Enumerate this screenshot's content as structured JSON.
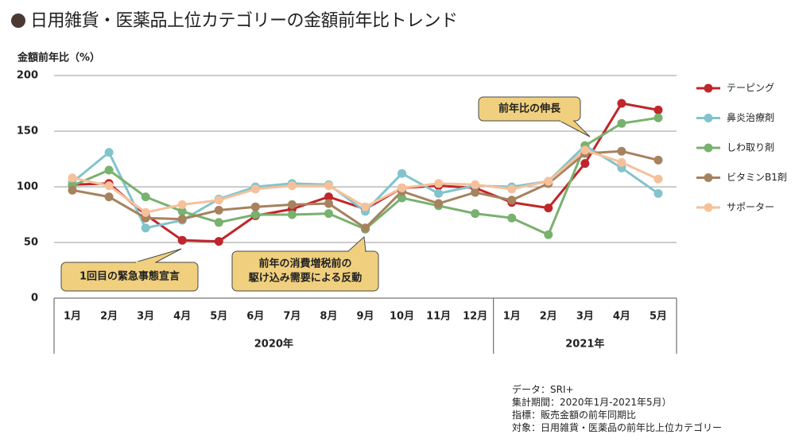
{
  "title": "日用雑貨・医薬品上位カテゴリーの金額前年比トレンド",
  "icons": {
    "title_bullet": "circle-bullet-icon"
  },
  "chart_data": {
    "type": "line",
    "title": "日用雑貨・医薬品上位カテゴリーの金額前年比トレンド",
    "ylabel": "金額前年比（%）",
    "xlabel": "",
    "ylim": [
      0,
      200
    ],
    "yticks": [
      0,
      50,
      100,
      150,
      200
    ],
    "grid": true,
    "legend": "right",
    "categories": [
      "1月",
      "2月",
      "3月",
      "4月",
      "5月",
      "6月",
      "7月",
      "8月",
      "9月",
      "10月",
      "11月",
      "12月",
      "1月",
      "2月",
      "3月",
      "4月",
      "5月"
    ],
    "year_groups": [
      {
        "label": "2020年",
        "months": 12
      },
      {
        "label": "2021年",
        "months": 5
      }
    ],
    "series": [
      {
        "name": "テーピング",
        "color": "#c0262a",
        "values": [
          102,
          103,
          75,
          52,
          51,
          74,
          80,
          91,
          80,
          99,
          101,
          99,
          86,
          81,
          121,
          175,
          169
        ]
      },
      {
        "name": "鼻炎治療剤",
        "color": "#82c4cc",
        "values": [
          104,
          131,
          63,
          70,
          89,
          100,
          103,
          102,
          78,
          112,
          94,
          101,
          100,
          105,
          137,
          117,
          94
        ]
      },
      {
        "name": "しわ取り剤",
        "color": "#79b16f",
        "values": [
          101,
          115,
          91,
          78,
          68,
          75,
          75,
          76,
          62,
          90,
          83,
          76,
          72,
          57,
          137,
          157,
          162
        ]
      },
      {
        "name": "ビタミンB1剤",
        "color": "#a6825e",
        "values": [
          97,
          91,
          72,
          71,
          79,
          82,
          84,
          85,
          63,
          96,
          85,
          95,
          88,
          103,
          130,
          132,
          124
        ]
      },
      {
        "name": "サポーター",
        "color": "#f6c19a",
        "values": [
          108,
          101,
          77,
          84,
          88,
          98,
          101,
          101,
          82,
          99,
          103,
          102,
          98,
          105,
          133,
          122,
          107
        ]
      }
    ],
    "annotations": [
      {
        "lines": [
          "前年比の伸長"
        ],
        "target_index": 14
      },
      {
        "lines": [
          "1回目の緊急事態宣言"
        ],
        "target_index": 3
      },
      {
        "lines": [
          "前年の消費増税前の",
          "駆け込み需要による反動"
        ],
        "target_index": 8
      }
    ]
  },
  "source": {
    "lines": [
      "データ：SRI+",
      "集計期間：2020年1月-2021年5月）",
      "指標：販売金額の前年同期比",
      "対象：日用雑貨・医薬品の前年比上位カテゴリー"
    ]
  }
}
